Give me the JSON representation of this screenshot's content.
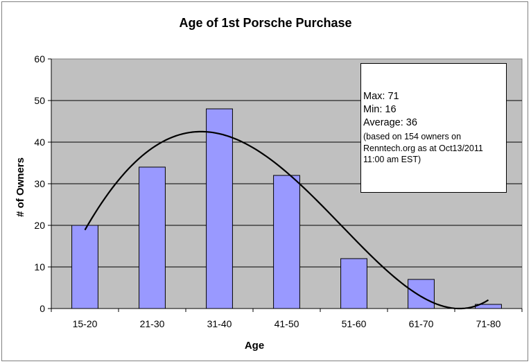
{
  "chart_data": {
    "type": "bar",
    "title": "Age of 1st Porsche Purchase",
    "xlabel": "Age",
    "ylabel": "# of Owners",
    "categories": [
      "15-20",
      "21-30",
      "31-40",
      "41-50",
      "51-60",
      "61-70",
      "71-80"
    ],
    "values": [
      20,
      34,
      48,
      32,
      12,
      7,
      1
    ],
    "ylim": [
      0,
      60
    ],
    "yticks": [
      0,
      10,
      20,
      30,
      40,
      50,
      60
    ],
    "grid": true,
    "trendline": {
      "type": "polynomial",
      "note": ""
    },
    "colors": {
      "bar": "#9999ff",
      "plot_bg": "#c0c0c0",
      "trend": "#000000"
    }
  },
  "annotation": {
    "max": "Max: 71",
    "min": "Min: 16",
    "average": "Average: 36",
    "source": "(based on 154 owners on\nRenntech.org as at Oct13/2011\n11:00 am EST)"
  }
}
